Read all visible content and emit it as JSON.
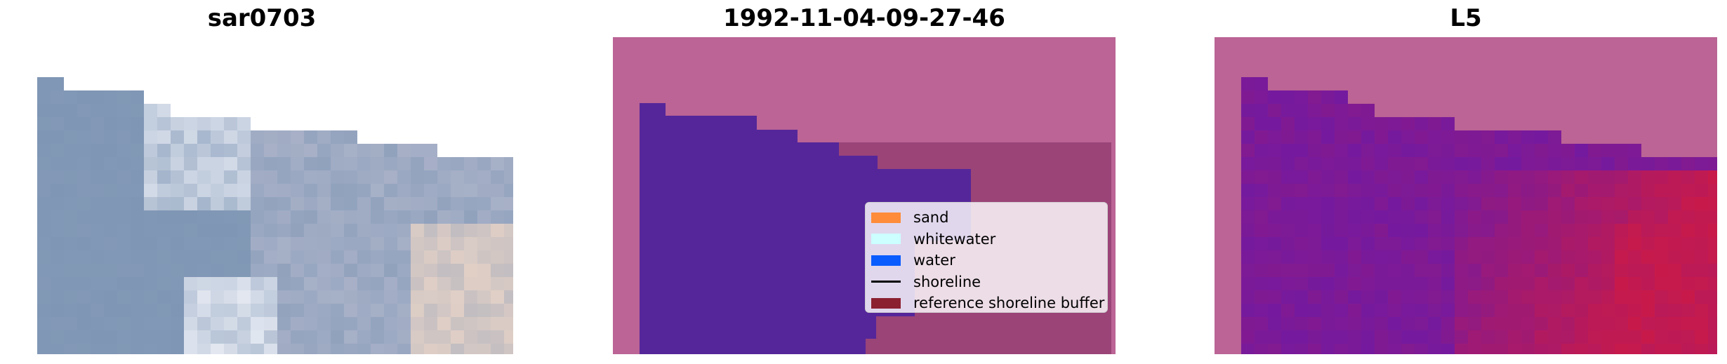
{
  "panels": [
    {
      "title": "sar0703"
    },
    {
      "title": "1992-11-04-09-27-46"
    },
    {
      "title": "L5"
    }
  ],
  "legend": {
    "items": [
      {
        "label": "sand",
        "kind": "patch",
        "color": "#ff8c3a"
      },
      {
        "label": "whitewater",
        "kind": "patch",
        "color": "#ccffff"
      },
      {
        "label": "water",
        "kind": "patch",
        "color": "#0a5cff"
      },
      {
        "label": "shoreline",
        "kind": "line",
        "color": "#000000"
      },
      {
        "label": "reference shoreline buffer",
        "kind": "patch",
        "color": "#8b2030"
      }
    ]
  },
  "colors": {
    "background_overlay": "#bb6495",
    "classified_water": "#55269a",
    "buffer_overlay": "#9a4478",
    "rgb_water_tone": "#7f96b5",
    "l5_water_tone": "#6b1aa8",
    "l5_land_tone": "#c81a4a"
  }
}
